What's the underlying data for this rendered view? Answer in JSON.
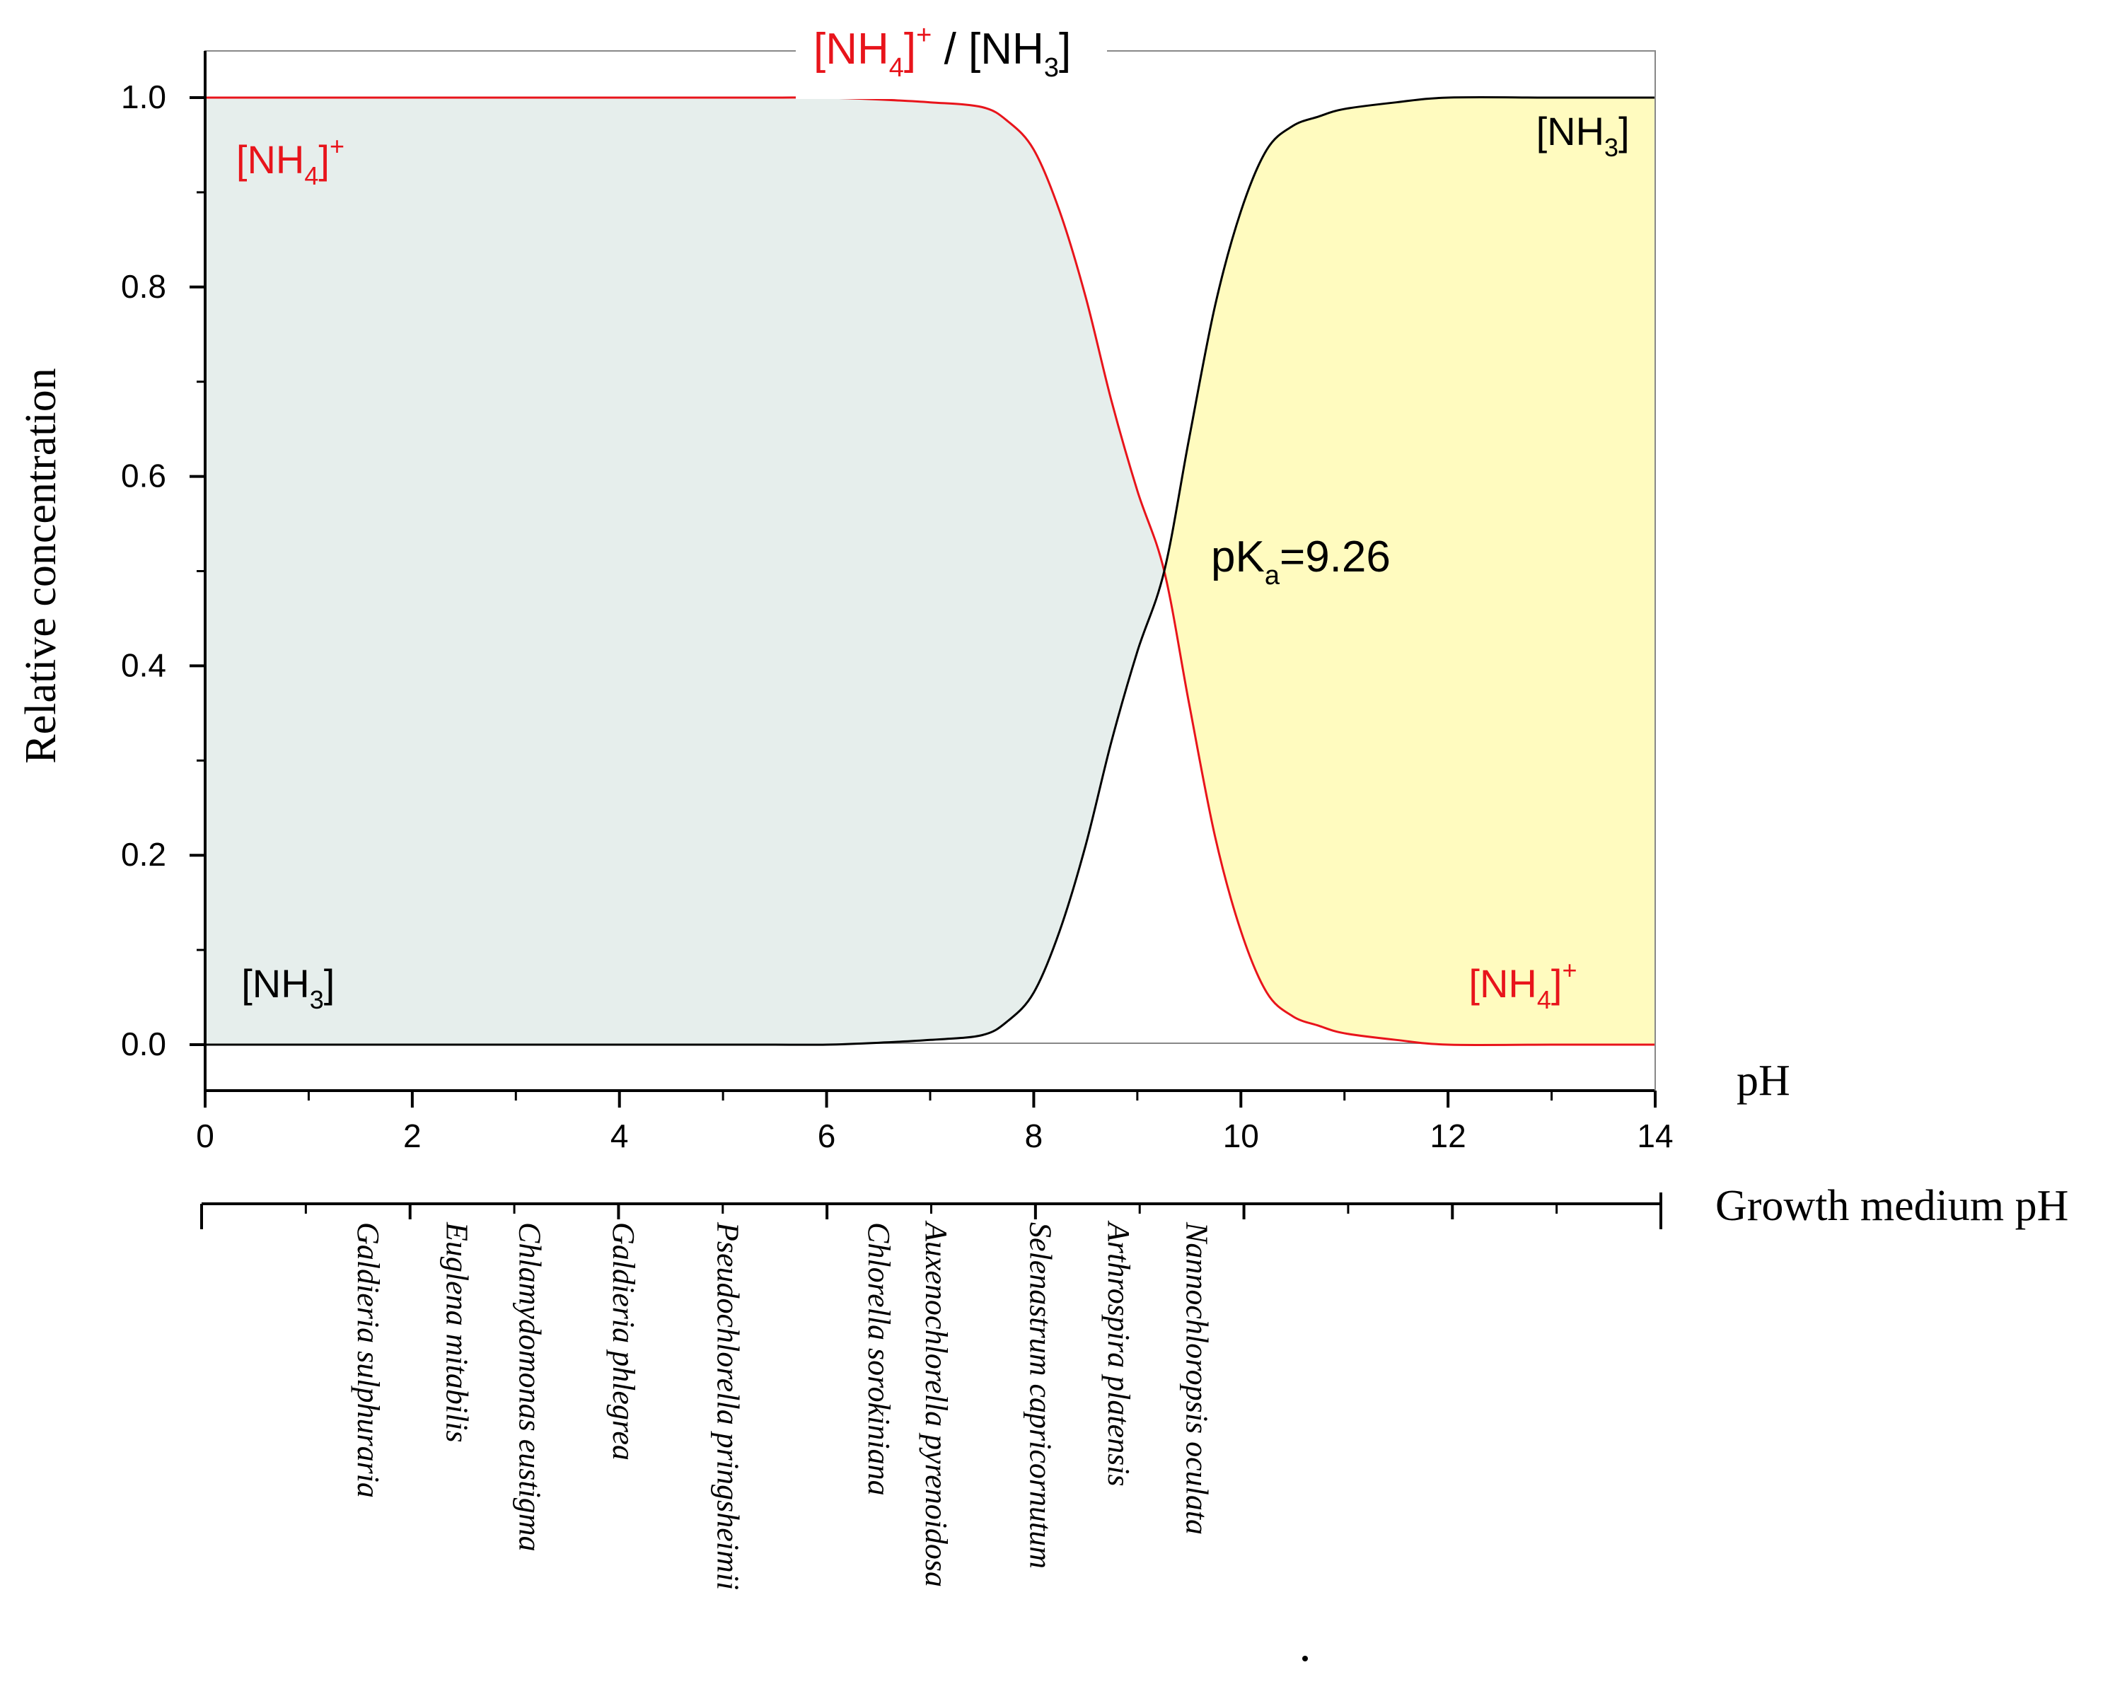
{
  "chart_data": {
    "type": "area",
    "title": {
      "left_ion": "[NH",
      "left_sub": "4",
      "left_sup": "+",
      "separator": " / ",
      "right_ion": "[NH",
      "right_sub": "3",
      "right_close": "]"
    },
    "ylabel": "Relative concentration",
    "xlabel": "pH",
    "xlim": [
      0,
      14
    ],
    "ylim": [
      0,
      1.0
    ],
    "x_ticks": [
      "0",
      "2",
      "4",
      "6",
      "8",
      "10",
      "12",
      "14"
    ],
    "y_ticks": [
      "0.0",
      "0.2",
      "0.4",
      "0.6",
      "0.8",
      "1.0"
    ],
    "pKa": 9.26,
    "pka_label": {
      "main": "pK",
      "sub": "a",
      "value": "=9.26"
    },
    "series": [
      {
        "id": "NH4",
        "color": "#e8141b",
        "fill": "#e6eeec",
        "points": [
          [
            0,
            1.0
          ],
          [
            1,
            1.0
          ],
          [
            2,
            1.0
          ],
          [
            3,
            1.0
          ],
          [
            4,
            1.0
          ],
          [
            5,
            1.0
          ],
          [
            5.5,
            1.0
          ],
          [
            6,
            1.0
          ],
          [
            6.5,
            0.998
          ],
          [
            7,
            0.995
          ],
          [
            7.5,
            0.99
          ],
          [
            7.75,
            0.975
          ],
          [
            8,
            0.945
          ],
          [
            8.25,
            0.88
          ],
          [
            8.5,
            0.79
          ],
          [
            8.75,
            0.68
          ],
          [
            9.0,
            0.585
          ],
          [
            9.26,
            0.5
          ],
          [
            9.5,
            0.36
          ],
          [
            9.75,
            0.22
          ],
          [
            10.0,
            0.12
          ],
          [
            10.25,
            0.055
          ],
          [
            10.5,
            0.03
          ],
          [
            10.75,
            0.02
          ],
          [
            11,
            0.012
          ],
          [
            11.5,
            0.005
          ],
          [
            12,
            0.0
          ],
          [
            13,
            0.0
          ],
          [
            14,
            0.0
          ]
        ]
      },
      {
        "id": "NH3",
        "color": "#000000",
        "fill": "#fffbbf",
        "points": [
          [
            0,
            0.0
          ],
          [
            1,
            0.0
          ],
          [
            2,
            0.0
          ],
          [
            3,
            0.0
          ],
          [
            4,
            0.0
          ],
          [
            5,
            0.0
          ],
          [
            5.5,
            0.0
          ],
          [
            6,
            0.0
          ],
          [
            6.5,
            0.002
          ],
          [
            7,
            0.005
          ],
          [
            7.5,
            0.01
          ],
          [
            7.75,
            0.025
          ],
          [
            8,
            0.055
          ],
          [
            8.25,
            0.12
          ],
          [
            8.5,
            0.21
          ],
          [
            8.75,
            0.32
          ],
          [
            9.0,
            0.415
          ],
          [
            9.26,
            0.5
          ],
          [
            9.5,
            0.64
          ],
          [
            9.75,
            0.78
          ],
          [
            10.0,
            0.88
          ],
          [
            10.25,
            0.945
          ],
          [
            10.5,
            0.97
          ],
          [
            10.75,
            0.98
          ],
          [
            11,
            0.988
          ],
          [
            11.5,
            0.995
          ],
          [
            12,
            1.0
          ],
          [
            13,
            1.0
          ],
          [
            14,
            1.0
          ]
        ]
      }
    ],
    "region_labels": [
      {
        "text": "[NH",
        "sub": "4",
        "close": "]",
        "sup": "+",
        "color": "#e8141b",
        "x": 0.3,
        "y": 0.92
      },
      {
        "text": "[NH",
        "sub": "3",
        "close": "]",
        "sup": "",
        "color": "#000000",
        "x": 0.35,
        "y": 0.05
      },
      {
        "text": "[NH",
        "sub": "3",
        "close": "]",
        "sup": "",
        "color": "#000000",
        "x": 12.85,
        "y": 0.95
      },
      {
        "text": "[NH",
        "sub": "4",
        "close": "]",
        "sup": "+",
        "color": "#e8141b",
        "x": 12.2,
        "y": 0.05
      }
    ],
    "secondary_axis": {
      "label": "Growth medium pH",
      "range": [
        0,
        14
      ],
      "species": [
        {
          "name": "Galdieria sulphuraria",
          "ph": 1.5
        },
        {
          "name": "Euglena mitabilis",
          "ph": 2.35
        },
        {
          "name": "Chlamydomonas eustigma",
          "ph": 3.05
        },
        {
          "name": "Galdieria phlegrea",
          "ph": 3.95
        },
        {
          "name": "Pseudochlorella pringsheimii",
          "ph": 4.95
        },
        {
          "name": "Chlorella sorokiniana",
          "ph": 6.4
        },
        {
          "name": "Auxenochlorella pyrenoidosa",
          "ph": 6.95
        },
        {
          "name": "Selenastrum capricornutum",
          "ph": 7.95
        },
        {
          "name": "Arthrospira platensis",
          "ph": 8.7
        },
        {
          "name": "Nannochloropsis oculata",
          "ph": 9.45
        }
      ]
    }
  }
}
